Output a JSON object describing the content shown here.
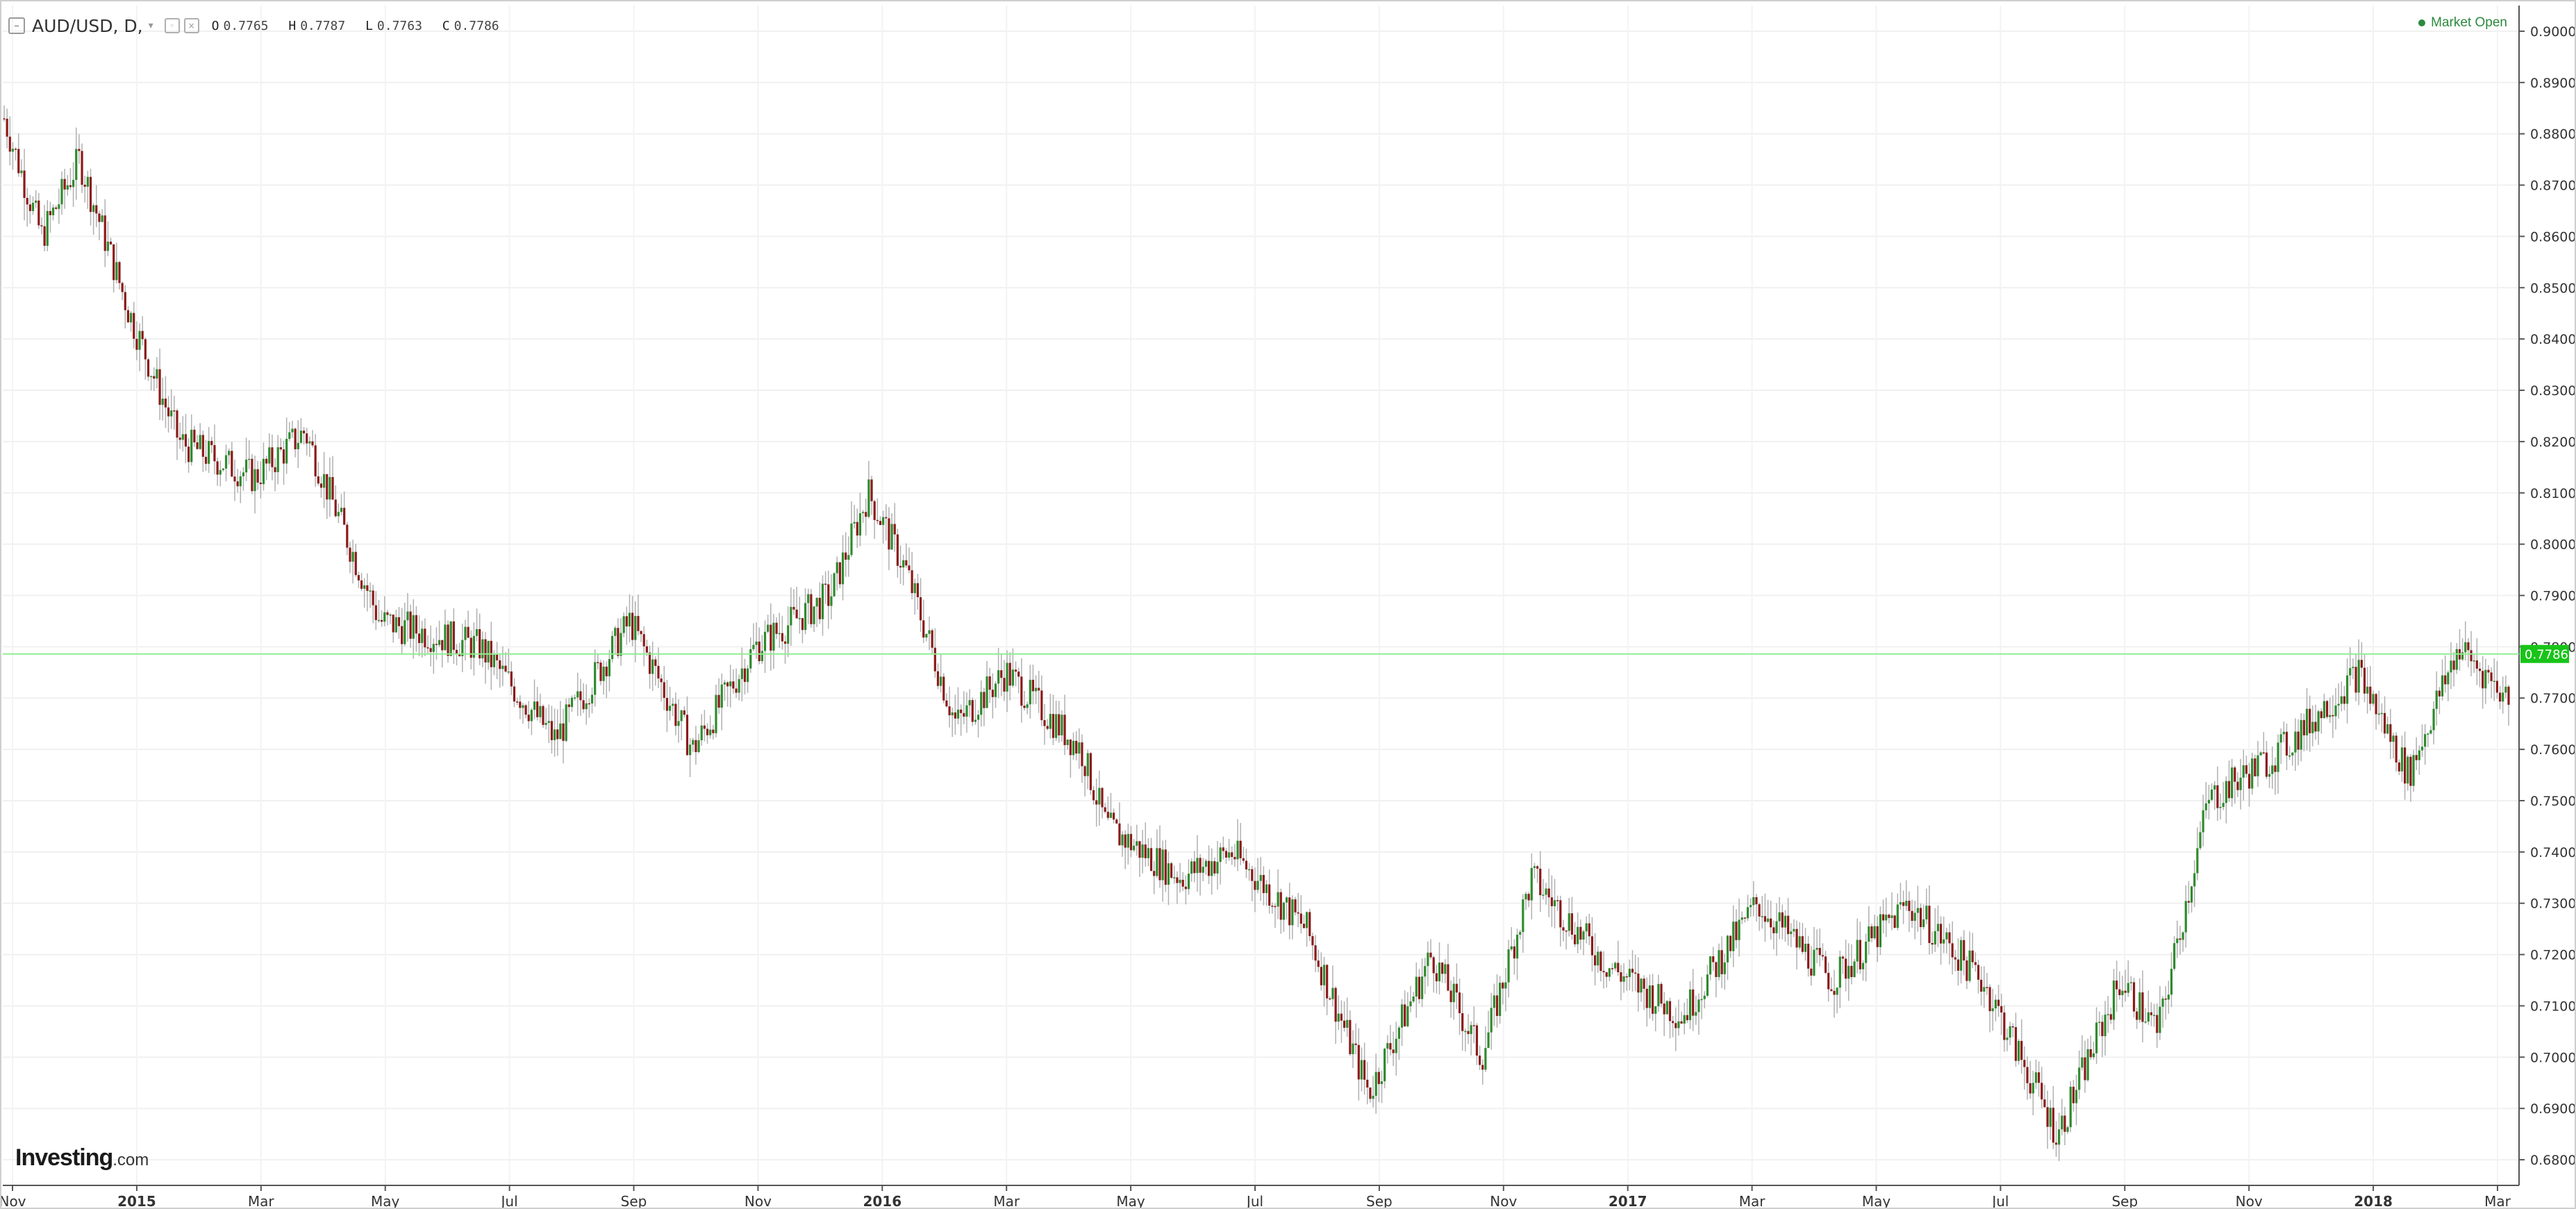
{
  "legend": {
    "symbol": "AUD/USD, D,",
    "open_label": "O",
    "open": "0.7765",
    "high_label": "H",
    "high": "0.7787",
    "low_label": "L",
    "low": "0.7763",
    "close_label": "C",
    "close": "0.7786"
  },
  "market_status": "Market Open",
  "logo": {
    "brand": "Investing",
    "suffix": ".com"
  },
  "colors": {
    "up": "#2e8b2e",
    "down": "#8b1a1a",
    "wick": "#b0b0b0",
    "price_line": "#90ee90",
    "price_badge": "#18c418"
  },
  "chart_data": {
    "type": "candlestick",
    "series_name": "AUD/USD",
    "timeframe": "D",
    "ylim": [
      0.675,
      0.905
    ],
    "y_ticks": [
      "0.9000",
      "0.8900",
      "0.8800",
      "0.8700",
      "0.8600",
      "0.8500",
      "0.8400",
      "0.8300",
      "0.8200",
      "0.8100",
      "0.8000",
      "0.7900",
      "0.7800",
      "0.7700",
      "0.7600",
      "0.7500",
      "0.7400",
      "0.7300",
      "0.7200",
      "0.7100",
      "0.7000",
      "0.6900",
      "0.6800"
    ],
    "x_labels": [
      {
        "label": "Nov",
        "bold": false
      },
      {
        "label": "2015",
        "bold": true
      },
      {
        "label": "Mar",
        "bold": false
      },
      {
        "label": "May",
        "bold": false
      },
      {
        "label": "Jul",
        "bold": false
      },
      {
        "label": "Sep",
        "bold": false
      },
      {
        "label": "Nov",
        "bold": false
      },
      {
        "label": "2016",
        "bold": true
      },
      {
        "label": "Mar",
        "bold": false
      },
      {
        "label": "May",
        "bold": false
      },
      {
        "label": "Jul",
        "bold": false
      },
      {
        "label": "Sep",
        "bold": false
      },
      {
        "label": "Nov",
        "bold": false
      },
      {
        "label": "2017",
        "bold": true
      },
      {
        "label": "Mar",
        "bold": false
      },
      {
        "label": "May",
        "bold": false
      },
      {
        "label": "Jul",
        "bold": false
      },
      {
        "label": "Sep",
        "bold": false
      },
      {
        "label": "Nov",
        "bold": false
      },
      {
        "label": "2018",
        "bold": true
      },
      {
        "label": "Mar",
        "bold": false
      }
    ],
    "current_price": 0.7786,
    "current_price_label": "0.7786",
    "price_path": [
      {
        "t": 0,
        "p": 0.883
      },
      {
        "t": 0.015,
        "p": 0.86
      },
      {
        "t": 0.03,
        "p": 0.875
      },
      {
        "t": 0.05,
        "p": 0.845
      },
      {
        "t": 0.07,
        "p": 0.82
      },
      {
        "t": 0.1,
        "p": 0.813
      },
      {
        "t": 0.12,
        "p": 0.822
      },
      {
        "t": 0.15,
        "p": 0.785
      },
      {
        "t": 0.19,
        "p": 0.78
      },
      {
        "t": 0.22,
        "p": 0.762
      },
      {
        "t": 0.25,
        "p": 0.785
      },
      {
        "t": 0.275,
        "p": 0.76
      },
      {
        "t": 0.3,
        "p": 0.78
      },
      {
        "t": 0.33,
        "p": 0.79
      },
      {
        "t": 0.345,
        "p": 0.81
      },
      {
        "t": 0.36,
        "p": 0.795
      },
      {
        "t": 0.38,
        "p": 0.765
      },
      {
        "t": 0.4,
        "p": 0.775
      },
      {
        "t": 0.43,
        "p": 0.76
      },
      {
        "t": 0.44,
        "p": 0.745
      },
      {
        "t": 0.47,
        "p": 0.735
      },
      {
        "t": 0.49,
        "p": 0.74
      },
      {
        "t": 0.52,
        "p": 0.725
      },
      {
        "t": 0.545,
        "p": 0.693
      },
      {
        "t": 0.57,
        "p": 0.72
      },
      {
        "t": 0.59,
        "p": 0.7
      },
      {
        "t": 0.61,
        "p": 0.735
      },
      {
        "t": 0.64,
        "p": 0.718
      },
      {
        "t": 0.67,
        "p": 0.708
      },
      {
        "t": 0.7,
        "p": 0.73
      },
      {
        "t": 0.73,
        "p": 0.715
      },
      {
        "t": 0.76,
        "p": 0.73
      },
      {
        "t": 0.79,
        "p": 0.715
      },
      {
        "t": 0.805,
        "p": 0.7
      },
      {
        "t": 0.82,
        "p": 0.685
      },
      {
        "t": 0.845,
        "p": 0.715
      },
      {
        "t": 0.86,
        "p": 0.705
      },
      {
        "t": 0.88,
        "p": 0.75
      },
      {
        "t": 0.91,
        "p": 0.76
      },
      {
        "t": 0.94,
        "p": 0.775
      },
      {
        "t": 0.96,
        "p": 0.755
      },
      {
        "t": 0.98,
        "p": 0.78
      },
      {
        "t": 1.0,
        "p": 0.77
      }
    ]
  }
}
